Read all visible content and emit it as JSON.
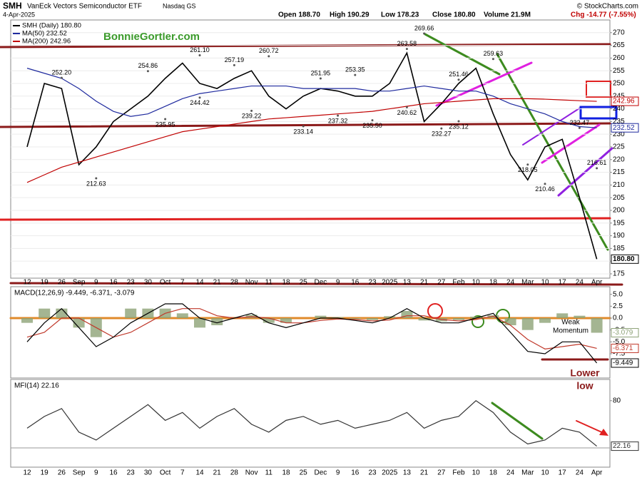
{
  "header": {
    "symbol": "SMH",
    "name": "VanEck Vectors Semiconductor ETF",
    "exchange": "Nasdaq GS",
    "source": "© StockCharts.com",
    "date": "4-Apr-2025",
    "quote": [
      "Open 188.70",
      "High 190.29",
      "Low 178.23",
      "Close 180.80",
      "Volume 21.9M"
    ],
    "change": "Chg -14.77 (-7.55%)",
    "watermark": "BonnieGortler.com"
  },
  "chart_data": [
    {
      "type": "line",
      "grid": true,
      "categories": [
        "12",
        "19",
        "26",
        "Sep",
        "9",
        "16",
        "23",
        "30",
        "Oct",
        "7",
        "14",
        "21",
        "28",
        "Nov",
        "11",
        "18",
        "25",
        "Dec",
        "9",
        "16",
        "23",
        "2025",
        "13",
        "21",
        "27",
        "Feb",
        "10",
        "18",
        "24",
        "Mar",
        "10",
        "17",
        "24",
        "Apr"
      ],
      "ylim": [
        173.3,
        275
      ],
      "yticks": [
        175,
        180,
        185,
        190,
        195,
        200,
        205,
        210,
        215,
        220,
        225,
        230,
        235,
        240,
        245,
        250,
        255,
        260,
        265,
        270
      ],
      "series": [
        {
          "name": "SMH (Daily) 180.80",
          "color": "#000000",
          "last_label": "180.80",
          "values": [
            225,
            250,
            248,
            218,
            225,
            235,
            240,
            245,
            252,
            258,
            250,
            248,
            252,
            255,
            245,
            240,
            245,
            248,
            247,
            245,
            245,
            250,
            262,
            235,
            242,
            250,
            256,
            238,
            222,
            212,
            225,
            228,
            205,
            180.8
          ]
        },
        {
          "name": "MA(50) 232.52",
          "color": "#1f2a9e",
          "last_label": "232.52",
          "values": [
            256,
            254,
            252,
            248,
            243,
            239,
            237,
            238,
            241,
            244,
            246,
            247,
            248,
            249,
            249,
            249,
            248,
            248,
            248,
            248,
            247,
            247,
            248,
            249,
            248,
            247,
            247,
            245,
            242,
            240,
            238,
            235,
            233,
            232.52
          ]
        },
        {
          "name": "MA(200) 242.96",
          "color": "#c00000",
          "last_label": "242.96",
          "values": [
            211,
            214,
            217,
            219,
            221,
            223,
            225,
            227,
            229,
            231,
            232,
            233,
            234,
            235,
            236,
            236.5,
            237,
            237.5,
            238,
            238.5,
            239,
            240,
            241,
            242,
            242.5,
            243,
            243.5,
            244,
            244,
            244,
            243.8,
            243.5,
            243.2,
            242.96
          ]
        }
      ],
      "highs": [
        null,
        null,
        252.2,
        null,
        null,
        null,
        null,
        254.86,
        null,
        null,
        261.1,
        null,
        257.19,
        null,
        260.72,
        null,
        null,
        251.95,
        null,
        253.35,
        null,
        null,
        263.58,
        269.66,
        null,
        251.46,
        null,
        259.63,
        null,
        null,
        null,
        null,
        232.47,
        216.61
      ],
      "high_labels": [
        null,
        null,
        "252.20",
        null,
        null,
        null,
        null,
        "254.86",
        null,
        null,
        "261.10",
        null,
        "257.19",
        null,
        "260.72",
        null,
        null,
        "251.95",
        null,
        "253.35",
        null,
        null,
        "263.58",
        "269.66",
        null,
        "251.46",
        null,
        "259.63",
        null,
        null,
        null,
        null,
        "232.47",
        "216.61"
      ],
      "lows": [
        null,
        null,
        null,
        null,
        212.63,
        null,
        null,
        null,
        235.95,
        null,
        244.42,
        null,
        null,
        239.22,
        null,
        null,
        233.14,
        null,
        237.32,
        null,
        235.5,
        null,
        240.62,
        null,
        232.27,
        235.12,
        null,
        null,
        null,
        218.05,
        210.46,
        null,
        null,
        null
      ],
      "low_labels": [
        null,
        null,
        null,
        null,
        "212.63",
        null,
        null,
        null,
        "235.95",
        null,
        "244.42",
        null,
        null,
        "239.22",
        null,
        null,
        "233.14",
        null,
        "237.32",
        null,
        "235.50",
        null,
        "240.62",
        null,
        "232.27",
        "235.12",
        null,
        null,
        null,
        "218.05",
        "210.46",
        null,
        null,
        null
      ]
    },
    {
      "type": "line",
      "title": "MACD(12,26,9) -9.449, -6.371, -3.079",
      "ylim": [
        -12.6,
        6.6
      ],
      "yticks": [
        {
          "value": -7.5,
          "label": "-7.5"
        },
        {
          "value": -5,
          "label": "-5.0"
        },
        {
          "value": -2.5,
          "label": "-2.5"
        },
        {
          "value": 0,
          "label": "0.0"
        },
        {
          "value": 2.5,
          "label": "2.5"
        },
        {
          "value": 5,
          "label": "5.0"
        }
      ],
      "series": [
        {
          "type": "bar",
          "color": "#8da277",
          "last_label": "-3.079",
          "values": [
            -1,
            2,
            2,
            -2,
            -4,
            0,
            2,
            2,
            2,
            1,
            -2,
            -1.5,
            0,
            0.7,
            -1,
            -1,
            0,
            0.5,
            0.2,
            -0.2,
            -0.4,
            0.4,
            1.5,
            -0.5,
            -0.7,
            -0.4,
            0.3,
            0.6,
            -1.5,
            -2.5,
            -1,
            1,
            0.5,
            -3.079
          ]
        },
        {
          "type": "line",
          "color": "#c0392b",
          "last_label": "-6.371",
          "values": [
            -4,
            -3,
            0,
            0,
            -2,
            -4,
            -3,
            -1,
            1,
            2,
            2,
            0.5,
            0,
            0.3,
            0,
            -1,
            -1,
            -0.5,
            -0.2,
            -0.3,
            -0.6,
            -0.4,
            0.5,
            0.5,
            -0.3,
            -0.6,
            -0.3,
            0.4,
            -1.5,
            -4.5,
            -6.5,
            -6,
            -5.5,
            -6.371
          ]
        },
        {
          "type": "line",
          "color": "#000000",
          "last_label": "-9.449",
          "values": [
            -5,
            -1,
            2,
            -2,
            -6,
            -4,
            -1,
            1,
            3,
            3,
            0,
            -1,
            0,
            1,
            -1,
            -2,
            -1,
            0,
            0,
            -0.5,
            -1,
            0,
            2,
            0,
            -1,
            -1,
            0,
            1,
            -3,
            -7,
            -7.5,
            -5,
            -5,
            -9.449
          ]
        }
      ],
      "annotations": [
        [
          "Weak",
          "Momentum"
        ],
        [
          "Lower",
          "low"
        ]
      ]
    },
    {
      "type": "line",
      "title": "MFI(14) 22.16",
      "ylim": [
        -4.5,
        107
      ],
      "yticks": [
        80
      ],
      "series": [
        {
          "type": "line",
          "color": "#333333",
          "last_label": "22.16",
          "values": [
            45,
            60,
            70,
            40,
            30,
            45,
            60,
            75,
            55,
            65,
            45,
            60,
            70,
            50,
            40,
            55,
            60,
            50,
            55,
            45,
            50,
            55,
            65,
            45,
            55,
            60,
            80,
            65,
            40,
            25,
            30,
            45,
            40,
            22.16
          ]
        }
      ]
    }
  ]
}
